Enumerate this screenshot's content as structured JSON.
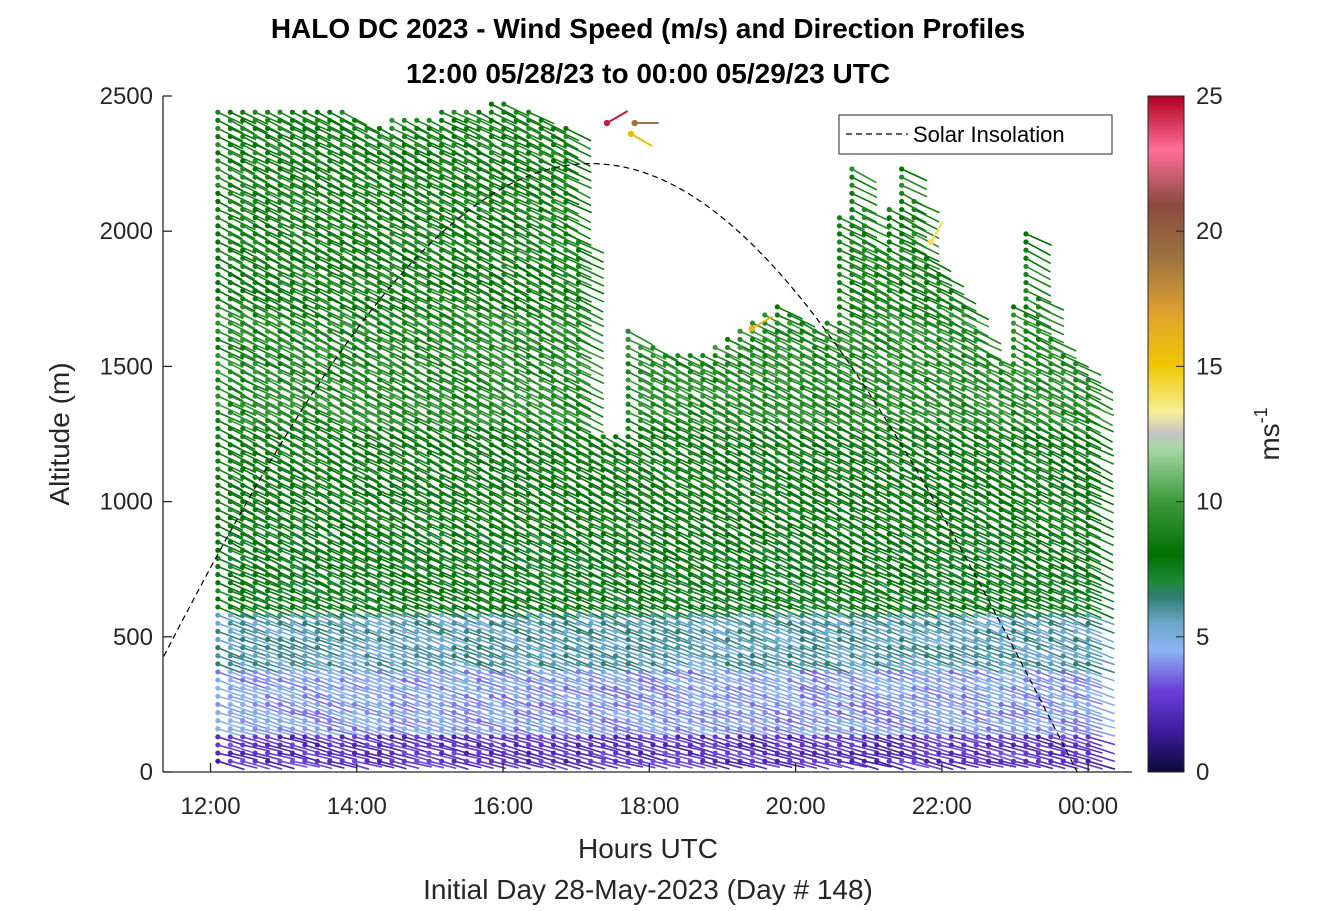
{
  "chart_data": {
    "type": "wind-barb-profile",
    "title": "HALO DC 2023 - Wind Speed (m/s) and Direction Profiles",
    "subtitle": "12:00 05/28/23 to 00:00 05/29/23  UTC",
    "xlabel": "Hours UTC",
    "x_sublabel": "Initial Day 28-May-2023 (Day # 148)",
    "ylabel": "Altitude (m)",
    "xlim": [
      11.35,
      24.6
    ],
    "ylim": [
      0,
      2500
    ],
    "x_ticks": [
      12,
      14,
      16,
      18,
      20,
      22,
      24
    ],
    "x_tick_labels": [
      "12:00",
      "14:00",
      "16:00",
      "18:00",
      "20:00",
      "22:00",
      "00:00"
    ],
    "y_ticks": [
      0,
      500,
      1000,
      1500,
      2000,
      2500
    ],
    "y_tick_labels": [
      "0",
      "500",
      "1000",
      "1500",
      "2000",
      "2500"
    ],
    "grid": false,
    "legend": {
      "placement": "top-right",
      "entries": [
        {
          "label": "Solar Insolation",
          "style": "dashed",
          "color": "#000000"
        }
      ]
    },
    "colorbar": {
      "label": "ms",
      "label_exponent": "-1",
      "range": [
        0,
        25
      ],
      "ticks": [
        0,
        5,
        10,
        15,
        20,
        25
      ],
      "tick_labels": [
        "0",
        "5",
        "10",
        "15",
        "20",
        "25"
      ],
      "stops": [
        {
          "value": 0,
          "color": "#0c0c3a"
        },
        {
          "value": 1.5,
          "color": "#3e1a9c"
        },
        {
          "value": 3,
          "color": "#6a3fd8"
        },
        {
          "value": 4.5,
          "color": "#8fb2f5"
        },
        {
          "value": 5.5,
          "color": "#6aa8c9"
        },
        {
          "value": 6.5,
          "color": "#2f7c72"
        },
        {
          "value": 7,
          "color": "#1f8a3a"
        },
        {
          "value": 8,
          "color": "#007000"
        },
        {
          "value": 10,
          "color": "#3c9a3c"
        },
        {
          "value": 12,
          "color": "#a9d8a9"
        },
        {
          "value": 12.5,
          "color": "#c3c3c3"
        },
        {
          "value": 13.3,
          "color": "#f5ef9a"
        },
        {
          "value": 15,
          "color": "#f0c800"
        },
        {
          "value": 17,
          "color": "#e0a030"
        },
        {
          "value": 19,
          "color": "#9c7440"
        },
        {
          "value": 21,
          "color": "#8c4a40"
        },
        {
          "value": 23,
          "color": "#ff6e9a"
        },
        {
          "value": 25,
          "color": "#b00020"
        }
      ]
    },
    "solar_insolation": {
      "start_hour": 10.55,
      "end_hour": 23.85,
      "peak_altitude": 2250,
      "floor_end_hour": 24.6
    },
    "wind_profiles": {
      "time_start": 12.1,
      "time_end": 24.0,
      "time_step": 0.17,
      "altitude_start": 40,
      "altitude_step": 30,
      "top_altitude_by_hour": [
        [
          12.1,
          2460
        ],
        [
          13.6,
          2460
        ],
        [
          14.2,
          2400
        ],
        [
          16.0,
          2480
        ],
        [
          16.9,
          2380
        ],
        [
          17.0,
          2000
        ],
        [
          17.8,
          1600
        ],
        [
          18.5,
          1540
        ],
        [
          19.3,
          1640
        ],
        [
          19.8,
          1740
        ],
        [
          20.4,
          1620
        ],
        [
          20.7,
          2300
        ],
        [
          21.1,
          1950
        ],
        [
          21.5,
          2300
        ],
        [
          21.8,
          1900
        ],
        [
          22.3,
          1740
        ],
        [
          22.6,
          1560
        ],
        [
          22.9,
          1520
        ],
        [
          23.1,
          2080
        ],
        [
          23.4,
          1640
        ],
        [
          23.9,
          1500
        ],
        [
          24.0,
          1450
        ]
      ],
      "gap_region": {
        "hour_from": 17.05,
        "hour_to": 17.6,
        "altitude_from": 1260,
        "altitude_to": 2360
      },
      "speed_layers": [
        {
          "below": 150,
          "speed": 2.5
        },
        {
          "below": 400,
          "speed": 4.3
        },
        {
          "below": 600,
          "speed": 5.8
        },
        {
          "below": 900,
          "speed": 7.8
        },
        {
          "below": 1300,
          "speed": 8.3
        },
        {
          "below": 1700,
          "speed": 9.2
        },
        {
          "below": 2500,
          "speed": 8.6
        }
      ],
      "direction_deg": {
        "surface": 250,
        "aloft": 270
      }
    },
    "outliers": [
      {
        "x": 17.42,
        "y": 2400,
        "speed": 24.5,
        "dir_deg": 300
      },
      {
        "x": 17.8,
        "y": 2400,
        "speed": 19.0,
        "dir_deg": 270
      },
      {
        "x": 17.75,
        "y": 2360,
        "speed": 15.5,
        "dir_deg": 240
      },
      {
        "x": 21.85,
        "y": 1960,
        "speed": 14.0,
        "dir_deg": 330
      },
      {
        "x": 19.4,
        "y": 1640,
        "speed": 16.0,
        "dir_deg": 300
      }
    ]
  }
}
